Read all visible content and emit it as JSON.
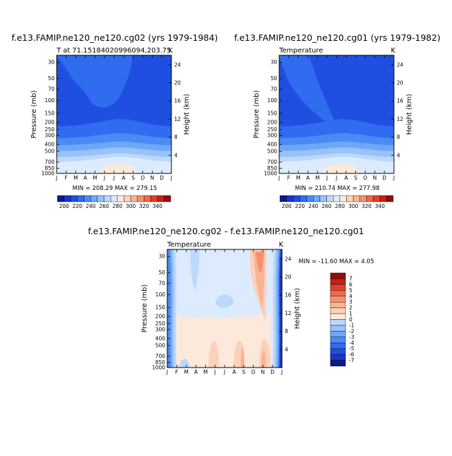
{
  "colors": {
    "scale": [
      "#0a1a8c",
      "#1b36c2",
      "#1f4fe0",
      "#2f6cf0",
      "#4a8af5",
      "#6fa7f7",
      "#97c2fa",
      "#bcd8fb",
      "#dcebfd",
      "#fce9dc",
      "#fbd2b8",
      "#f9b494",
      "#f5906c",
      "#ef6a48",
      "#e0412c",
      "#c42017",
      "#990b0b"
    ],
    "diff_scale": [
      "#0a1a8c",
      "#1b36c2",
      "#1f4fe0",
      "#2f6cf0",
      "#4a8af5",
      "#6fa7f7",
      "#97c2fa",
      "#bcd8fb",
      "#dcebfd",
      "#fce9dc",
      "#fbd2b8",
      "#f9b494",
      "#f5906c",
      "#ef6a48",
      "#e0412c",
      "#c42017",
      "#990b0b"
    ]
  },
  "chart_data": [
    {
      "type": "heatmap",
      "title": "f.e13.FAMIP.ne120_ne120.cg02 (yrs 1979-1984)",
      "subtitle_left": "T at 71.15184020996094,203.75",
      "subtitle_right": "K",
      "ylabel": "Pressure (mb)",
      "ylabel_right": "Height (km)",
      "x_ticks": [
        "J",
        "F",
        "M",
        "A",
        "M",
        "J",
        "J",
        "A",
        "S",
        "O",
        "N",
        "D",
        "J"
      ],
      "y_ticks": [
        "30",
        "50",
        "70",
        "100",
        "150",
        "200",
        "250",
        "300",
        "400",
        "500",
        "700",
        "850",
        "1000"
      ],
      "y_ticks_right": [
        "24",
        "20",
        "16",
        "12",
        "8",
        "4"
      ],
      "min_max_label": "MIN = 208.29  MAX = 279.15",
      "min": 208.29,
      "max": 279.15
    },
    {
      "type": "heatmap",
      "title": "f.e13.FAMIP.ne120_ne120.cg01 (yrs 1979-1982)",
      "subtitle_left": "Temperature",
      "subtitle_right": "K",
      "ylabel": "Pressure (mb)",
      "ylabel_right": "Height (km)",
      "x_ticks": [
        "J",
        "F",
        "M",
        "A",
        "M",
        "J",
        "J",
        "A",
        "S",
        "O",
        "N",
        "D",
        "J"
      ],
      "y_ticks": [
        "30",
        "50",
        "70",
        "100",
        "150",
        "200",
        "250",
        "300",
        "400",
        "500",
        "700",
        "850",
        "1000"
      ],
      "y_ticks_right": [
        "24",
        "20",
        "16",
        "12",
        "8",
        "4"
      ],
      "min_max_label": "MIN = 210.74  MAX = 277.98",
      "min": 210.74,
      "max": 277.98
    },
    {
      "type": "heatmap",
      "title": "f.e13.FAMIP.ne120_ne120.cg02 - f.e13.FAMIP.ne120_ne120.cg01",
      "subtitle_left": "Temperature",
      "subtitle_right": "K",
      "ylabel": "Pressure (mb)",
      "ylabel_right": "Height (km)",
      "x_ticks": [
        "J",
        "F",
        "M",
        "A",
        "M",
        "J",
        "J",
        "A",
        "S",
        "O",
        "N",
        "D",
        "J"
      ],
      "y_ticks": [
        "30",
        "50",
        "70",
        "100",
        "150",
        "200",
        "250",
        "300",
        "400",
        "500",
        "700",
        "850",
        "1000"
      ],
      "y_ticks_right": [
        "24",
        "20",
        "16",
        "12",
        "8",
        "4"
      ],
      "min_max_label": "MIN = -11.60  MAX =    4.05",
      "min": -11.6,
      "max": 4.05
    }
  ],
  "colorbar_top": {
    "labels": [
      "200",
      "220",
      "240",
      "260",
      "280",
      "300",
      "320",
      "340"
    ]
  },
  "colorbar_diff": {
    "labels": [
      "7",
      "6",
      "5",
      "4",
      "3",
      "2",
      "1",
      "0",
      "-1",
      "-2",
      "-3",
      "-4",
      "-5",
      "-6",
      "-7"
    ]
  }
}
